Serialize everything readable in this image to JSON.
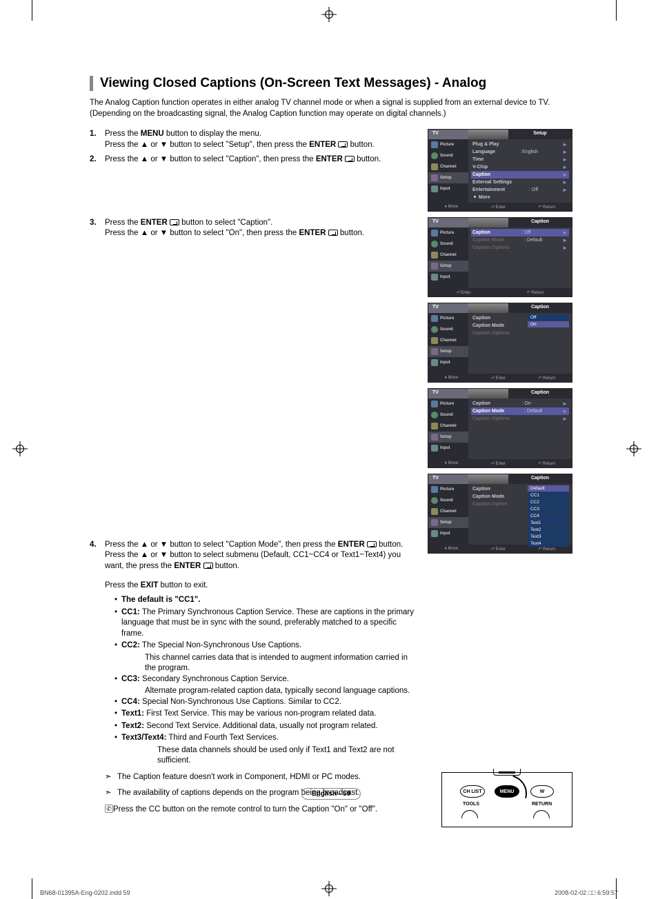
{
  "title": "Viewing Closed Captions (On-Screen Text Messages) - Analog",
  "intro": "The Analog Caption function operates in either analog TV channel mode or when a signal is supplied from an external device to TV. (Depending on the broadcasting signal, the Analog Caption function may operate on digital channels.)",
  "steps": {
    "s1": {
      "num": "1.",
      "a": "Press the ",
      "menu": "MENU",
      "b": " button to display the menu.",
      "c": "Press the ▲ or ▼ button to select \"Setup\", then press the ",
      "enter": "ENTER",
      "d": " button."
    },
    "s2": {
      "num": "2.",
      "a": "Press the ▲ or ▼ button to select \"Caption\", then press the ",
      "enter": "ENTER",
      "b": " button."
    },
    "s3": {
      "num": "3.",
      "a": "Press the ",
      "enter": "ENTER",
      "b": " button to select \"Caption\".",
      "c": "Press the ▲ or ▼ button to select \"On\", then press the ",
      "d": " button."
    },
    "s4": {
      "num": "4.",
      "a": "Press the ▲ or ▼ button to select \"Caption Mode\", then press the ",
      "enter": "ENTER",
      "b": " button.",
      "c": "Press the ▲ or ▼ button to select submenu (Default, CC1~CC4 or Text1~Text4) you want, the press the ",
      "d": " button."
    }
  },
  "exit_line": {
    "a": "Press the ",
    "exit": "EXIT",
    "b": " button to exit."
  },
  "default_note": "The default is \"CC1\".",
  "defs": {
    "cc1": {
      "lbl": "CC1:",
      "txt": " The Primary Synchronous Caption Service. These are captions in the primary language that must be in sync with the sound, preferably matched to a specific frame."
    },
    "cc2": {
      "lbl": "CC2:",
      "txt": " The Special Non-Synchronous Use Captions.",
      "cont": "This channel carries data that is intended to augment information carried in the program."
    },
    "cc3": {
      "lbl": "CC3:",
      "txt": " Secondary Synchronous Caption Service.",
      "cont": "Alternate program-related caption data, typically second language captions."
    },
    "cc4": {
      "lbl": "CC4:",
      "txt": " Special Non-Synchronous Use Captions. Similar to CC2."
    },
    "t1": {
      "lbl": "Text1:",
      "txt": " First Text Service. This may be various non-program related data."
    },
    "t2": {
      "lbl": "Text2:",
      "txt": " Second Text Service. Additional data, usually not program related."
    },
    "t34": {
      "lbl": "Text3/Text4:",
      "txt": " Third and Fourth Text Services.",
      "cont": "These data channels should be used only if Text1 and Text2 are not sufficient."
    }
  },
  "notes": {
    "n1": "The Caption feature doesn't work in Component, HDMI or PC modes.",
    "n2": "The availability of captions depends on the program being broadcast.",
    "n3": "Press the CC button on the remote control to turn the Caption \"On\" or \"Off\"."
  },
  "side_labels": {
    "picture": "Picture",
    "sound": "Sound",
    "channel": "Channel",
    "setup": "Setup",
    "input": "Input",
    "tv": "TV"
  },
  "menus": {
    "m1": {
      "title": "Setup",
      "rows": [
        {
          "k": "Plug & Play",
          "v": "",
          "arr": "►"
        },
        {
          "k": "Language",
          "v": ": English",
          "arr": "►"
        },
        {
          "k": "Time",
          "v": "",
          "arr": "►"
        },
        {
          "k": "V-Chip",
          "v": "",
          "arr": "►"
        },
        {
          "k": "Caption",
          "v": "",
          "arr": "►",
          "hl": true
        },
        {
          "k": "External Settings",
          "v": "",
          "arr": "►"
        },
        {
          "k": "Entertainment",
          "v": ": Off",
          "arr": "►"
        },
        {
          "k": "▼ More",
          "v": "",
          "arr": ""
        }
      ],
      "foot": [
        "♦ Move",
        "⏎ Enter",
        "↶ Return"
      ]
    },
    "m2": {
      "title": "Caption",
      "rows": [
        {
          "k": "Caption",
          "v": ": Off",
          "arr": "►",
          "hl": true
        },
        {
          "k": "Caption Mode",
          "v": ": Default",
          "arr": "►",
          "dim": true
        },
        {
          "k": "Caption Options",
          "v": "",
          "arr": "►",
          "dim": true
        }
      ],
      "foot": [
        "⏎ Enter",
        "↶ Return"
      ]
    },
    "m3": {
      "title": "Caption",
      "rows": [
        {
          "k": "Caption",
          "v": ":",
          "arr": ""
        },
        {
          "k": "Caption Mode",
          "v": ":",
          "arr": ""
        },
        {
          "k": "Caption Options",
          "v": "",
          "arr": "",
          "dim": true
        }
      ],
      "opts": [
        "Off",
        "On"
      ],
      "optsel": 1,
      "foot": [
        "♦ Move",
        "⏎ Enter",
        "↶ Return"
      ]
    },
    "m4": {
      "title": "Caption",
      "rows": [
        {
          "k": "Caption",
          "v": ": On",
          "arr": "►"
        },
        {
          "k": "Caption Mode",
          "v": ": Default",
          "arr": "►",
          "hl": true
        },
        {
          "k": "Caption Options",
          "v": "",
          "arr": "►",
          "dim": true
        }
      ],
      "foot": [
        "♦ Move",
        "⏎ Enter",
        "↶ Return"
      ]
    },
    "m5": {
      "title": "Caption",
      "rows": [
        {
          "k": "Caption",
          "v": ":",
          "arr": ""
        },
        {
          "k": "Caption Mode",
          "v": ":",
          "arr": ""
        },
        {
          "k": "Caption Option",
          "v": "",
          "arr": "",
          "dim": true
        }
      ],
      "opts": [
        "Default",
        "CC1",
        "CC2",
        "CC3",
        "CC4",
        "Text1",
        "Text2",
        "Text3",
        "Text4"
      ],
      "optsel": 0,
      "foot": [
        "♦ Move",
        "⏎ Enter",
        "↶ Return"
      ]
    }
  },
  "remote": {
    "chlist": "CH LIST",
    "menu": "MENU",
    "wc": "W",
    "tools": "TOOLS",
    "return": "RETURN"
  },
  "page_label": "English - 59",
  "footer": {
    "left": "BN68-01395A-Eng-0202.indd   59",
    "right": "2008-02-02   □□ 6:59:57"
  }
}
